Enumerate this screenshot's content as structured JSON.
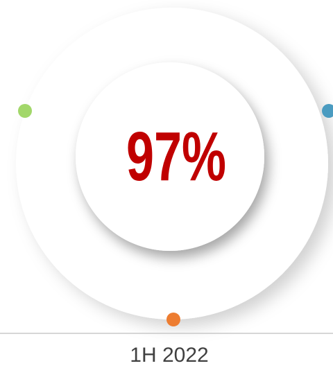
{
  "stat": {
    "value": "97%",
    "period": "1H 2022"
  }
}
